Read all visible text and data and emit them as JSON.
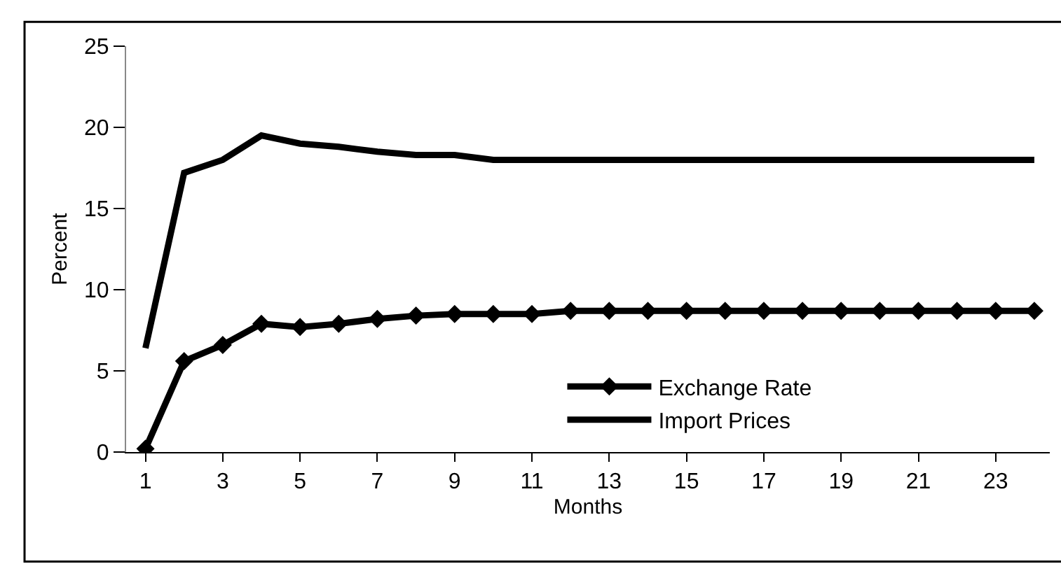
{
  "chart_data": {
    "type": "line",
    "xlabel": "Months",
    "ylabel": "Percent",
    "x": [
      1,
      2,
      3,
      4,
      5,
      6,
      7,
      8,
      9,
      10,
      11,
      12,
      13,
      14,
      15,
      16,
      17,
      18,
      19,
      20,
      21,
      22,
      23,
      24
    ],
    "series": [
      {
        "name": "Exchange Rate",
        "color": "#000000",
        "marker": "diamond",
        "values": [
          0.2,
          5.6,
          6.6,
          7.9,
          7.7,
          7.9,
          8.2,
          8.4,
          8.5,
          8.5,
          8.5,
          8.7,
          8.7,
          8.7,
          8.7,
          8.7,
          8.7,
          8.7,
          8.7,
          8.7,
          8.7,
          8.7,
          8.7,
          8.7
        ]
      },
      {
        "name": "Import Prices",
        "color": "#000000",
        "marker": "none",
        "values": [
          6.4,
          17.2,
          18,
          19.5,
          19,
          18.8,
          18.5,
          18.3,
          18.3,
          18,
          18,
          18,
          18,
          18,
          18,
          18,
          18,
          18,
          18,
          18,
          18,
          18,
          18,
          18
        ]
      }
    ],
    "xlim": [
      0.5,
      24.4
    ],
    "xticks": [
      1,
      3,
      5,
      7,
      9,
      11,
      13,
      15,
      17,
      19,
      21,
      23
    ],
    "ylim": [
      0,
      25
    ],
    "yticks": [
      0,
      5,
      10,
      15,
      20,
      25
    ],
    "legend": "bottom right",
    "line_style": "solid"
  }
}
